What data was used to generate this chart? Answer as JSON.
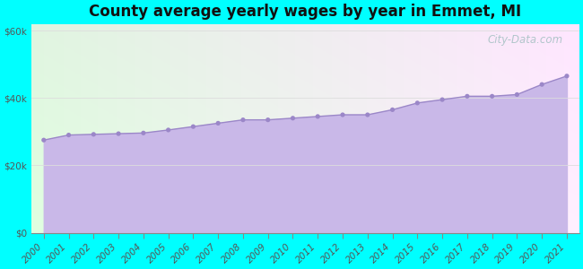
{
  "title": "County average yearly wages by year in Emmet, MI",
  "years": [
    2000,
    2001,
    2002,
    2003,
    2004,
    2005,
    2006,
    2007,
    2008,
    2009,
    2010,
    2011,
    2012,
    2013,
    2014,
    2015,
    2016,
    2017,
    2018,
    2019,
    2020,
    2021
  ],
  "values": [
    27500,
    29000,
    29200,
    29400,
    29600,
    30500,
    31500,
    32500,
    33500,
    33500,
    34000,
    34500,
    35000,
    35000,
    36500,
    38500,
    39500,
    40500,
    40500,
    41000,
    44000,
    46500
  ],
  "fill_color": "#c9b8e8",
  "line_color": "#9b87c8",
  "marker_color": "#9b87c8",
  "bg_outer": "#00ffff",
  "bg_plot_color1": "#e8f5e9",
  "bg_plot_color2": "#e8f0ff",
  "yticks": [
    0,
    20000,
    40000,
    60000
  ],
  "ytick_labels": [
    "$0",
    "$20k",
    "$40k",
    "$60k"
  ],
  "ylim": [
    0,
    62000
  ],
  "watermark": "City-Data.com",
  "title_fontsize": 12,
  "tick_fontsize": 7.5
}
